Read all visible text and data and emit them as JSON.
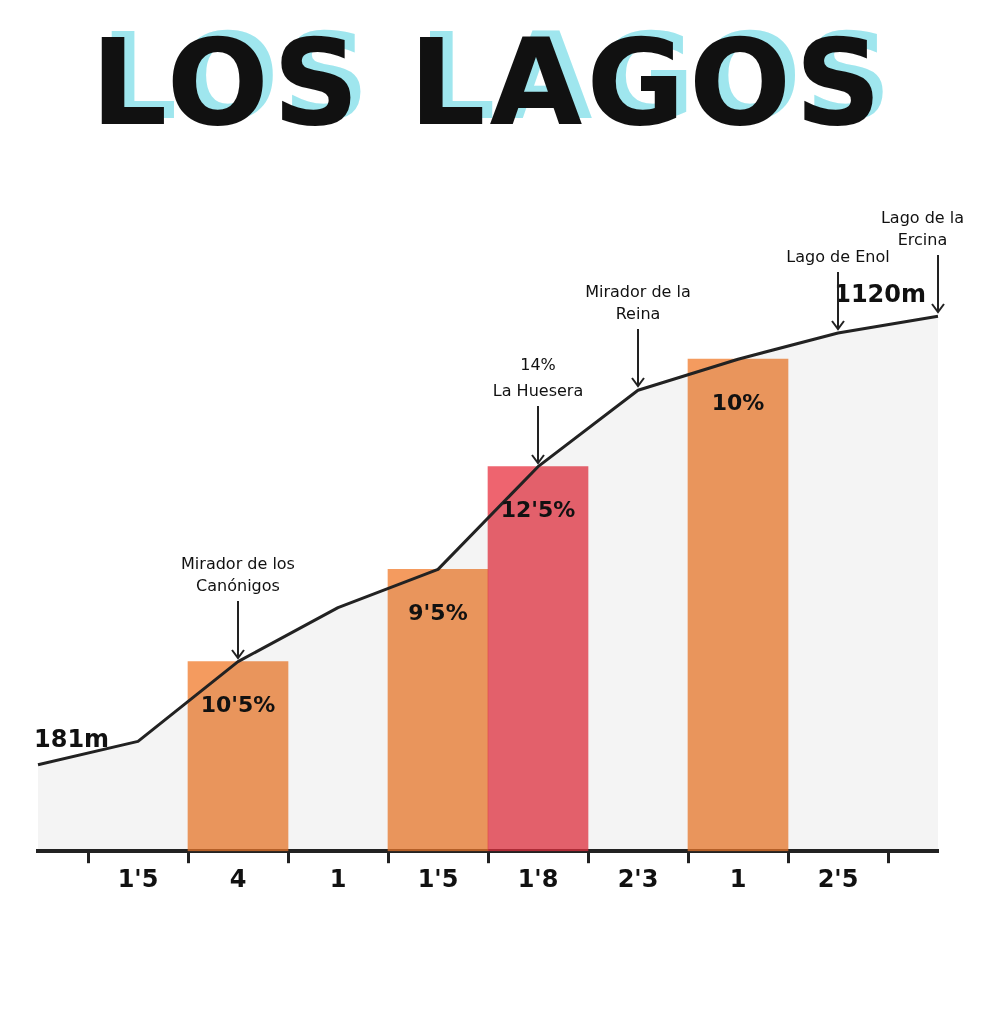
{
  "chart_data": {
    "type": "area",
    "title": "LOS LAGOS",
    "categories": [
      null,
      "1'5",
      "4",
      "1",
      "1'5",
      "1'8",
      "2'3",
      "1",
      "2'5",
      null
    ],
    "series": [
      {
        "color": "#222222",
        "values": [
          181,
          230,
          397,
          510,
          590,
          805,
          965,
          1030,
          1085,
          1120
        ],
        "value_labels": [
          "181m",
          null,
          null,
          null,
          null,
          null,
          null,
          null,
          null,
          "1120m"
        ]
      },
      {
        "type": "bar",
        "values": [
          null,
          null,
          397,
          null,
          590,
          805,
          null,
          1030,
          null,
          null
        ],
        "colors": [
          null,
          null,
          "#f07a2a",
          null,
          "#f07a2a",
          "#e8303f",
          null,
          "#f07a2a",
          null,
          null
        ]
      }
    ],
    "tick_labels": "x",
    "grid": false,
    "legend": false,
    "annotations": [
      "10'5%",
      "9'5%",
      "12'5%",
      "10%",
      "Lago de la Ercina",
      {
        "text": "Mirador de los Canónigos",
        "x": "4",
        "y": 397
      },
      {
        "text": "La Huesera",
        "x": "1'8",
        "y": 805
      },
      "14%",
      {
        "text": "Mirador de la Reina",
        "x": "2'3",
        "y": 965
      },
      {
        "text": "Lago de Enol",
        "x": "2'5",
        "y": 1085
      }
    ]
  }
}
